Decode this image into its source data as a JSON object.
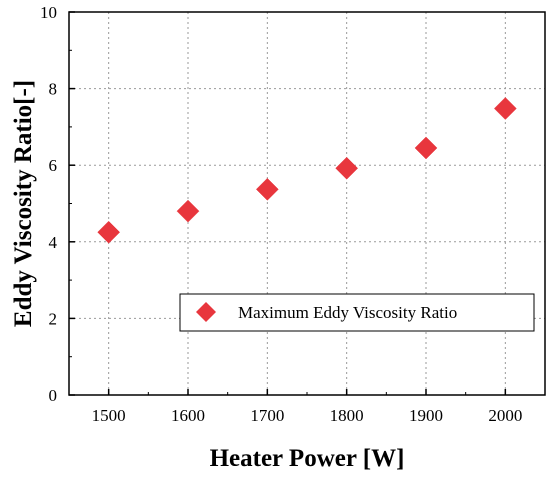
{
  "chart_data": {
    "type": "scatter",
    "title": "",
    "xlabel": "Heater Power [W]",
    "ylabel": "Eddy Viscosity Ratio[-]",
    "xlim": [
      1450,
      2050
    ],
    "ylim": [
      0,
      10
    ],
    "xticks": [
      1500,
      1600,
      1700,
      1800,
      1900,
      2000
    ],
    "yticks": [
      0,
      2,
      4,
      6,
      8,
      10
    ],
    "grid": true,
    "legend_position": "lower-right",
    "series": [
      {
        "name": "Maximum Eddy Viscosity Ratio",
        "marker": "diamond",
        "color": "#e8363d",
        "x": [
          1500,
          1600,
          1700,
          1800,
          1900,
          2000
        ],
        "y": [
          4.25,
          4.8,
          5.37,
          5.92,
          6.45,
          7.48
        ]
      }
    ]
  }
}
